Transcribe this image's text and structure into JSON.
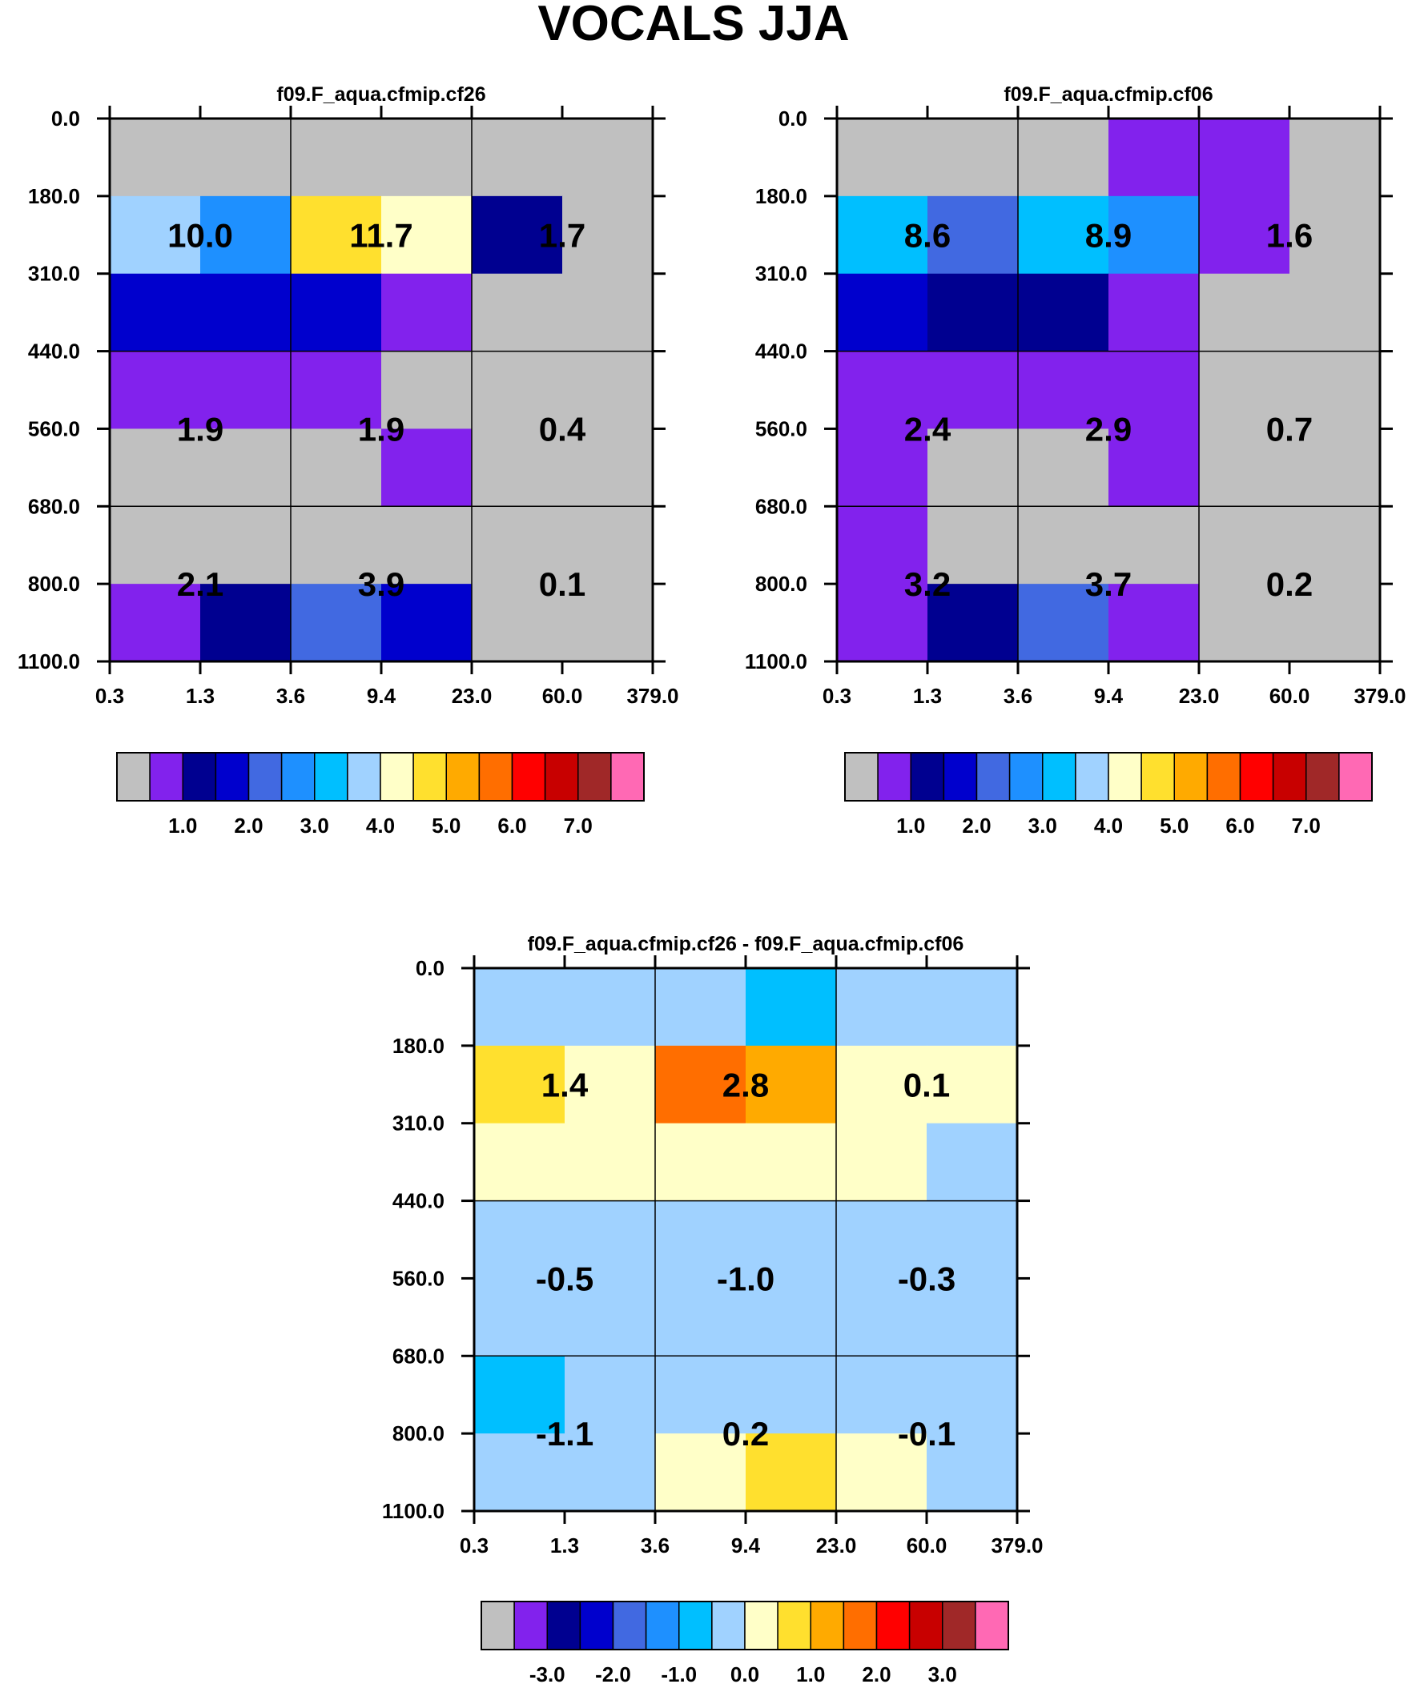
{
  "title": "VOCALS JJA",
  "colorbar": {
    "colors": [
      "#c0c0c0",
      "#8222ed",
      "#000090",
      "#0000cd",
      "#4169e1",
      "#1e90ff",
      "#00bfff",
      "#a0d2ff",
      "#ffffc8",
      "#ffe02e",
      "#ffaa00",
      "#ff6e00",
      "#ff0000",
      "#c80000",
      "#a02828",
      "#ff69b4"
    ]
  },
  "chart_data": [
    {
      "type": "heatmap",
      "title": "f09.F_aqua.cfmip.cf26",
      "x_tick_labels": [
        "0.3",
        "1.3",
        "3.6",
        "9.4",
        "23.0",
        "60.0",
        "379.0"
      ],
      "y_tick_labels": [
        "0.0",
        "180.0",
        "310.0",
        "440.0",
        "560.0",
        "680.0",
        "800.0",
        "1100.0"
      ],
      "cells": [
        [
          0,
          0,
          0,
          0,
          0,
          0
        ],
        [
          7,
          5,
          9,
          8,
          2,
          0
        ],
        [
          3,
          3,
          3,
          1,
          0,
          0
        ],
        [
          1,
          1,
          1,
          0,
          0,
          0
        ],
        [
          0,
          0,
          0,
          1,
          0,
          0
        ],
        [
          0,
          0,
          0,
          0,
          0,
          0
        ],
        [
          1,
          2,
          4,
          3,
          0,
          0
        ]
      ],
      "annotations": [
        [
          "10.0",
          "11.7",
          "1.7"
        ],
        [
          "1.9",
          "1.9",
          "0.4"
        ],
        [
          "2.1",
          "3.9",
          "0.1"
        ]
      ],
      "colorbar_tick_labels": [
        "1.0",
        "2.0",
        "3.0",
        "4.0",
        "5.0",
        "6.0",
        "7.0"
      ]
    },
    {
      "type": "heatmap",
      "title": "f09.F_aqua.cfmip.cf06",
      "x_tick_labels": [
        "0.3",
        "1.3",
        "3.6",
        "9.4",
        "23.0",
        "60.0",
        "379.0"
      ],
      "y_tick_labels": [
        "0.0",
        "180.0",
        "310.0",
        "440.0",
        "560.0",
        "680.0",
        "800.0",
        "1100.0"
      ],
      "cells": [
        [
          0,
          0,
          0,
          1,
          1,
          0
        ],
        [
          6,
          4,
          6,
          5,
          1,
          0
        ],
        [
          3,
          2,
          2,
          1,
          0,
          0
        ],
        [
          1,
          1,
          1,
          1,
          0,
          0
        ],
        [
          1,
          0,
          0,
          1,
          0,
          0
        ],
        [
          1,
          0,
          0,
          0,
          0,
          0
        ],
        [
          1,
          2,
          4,
          1,
          0,
          0
        ]
      ],
      "annotations": [
        [
          "8.6",
          "8.9",
          "1.6"
        ],
        [
          "2.4",
          "2.9",
          "0.7"
        ],
        [
          "3.2",
          "3.7",
          "0.2"
        ]
      ],
      "colorbar_tick_labels": [
        "1.0",
        "2.0",
        "3.0",
        "4.0",
        "5.0",
        "6.0",
        "7.0"
      ]
    },
    {
      "type": "heatmap",
      "title": "f09.F_aqua.cfmip.cf26 - f09.F_aqua.cfmip.cf06",
      "x_tick_labels": [
        "0.3",
        "1.3",
        "3.6",
        "9.4",
        "23.0",
        "60.0",
        "379.0"
      ],
      "y_tick_labels": [
        "0.0",
        "180.0",
        "310.0",
        "440.0",
        "560.0",
        "680.0",
        "800.0",
        "1100.0"
      ],
      "cells": [
        [
          7,
          7,
          7,
          6,
          7,
          7
        ],
        [
          9,
          8,
          11,
          10,
          8,
          8
        ],
        [
          8,
          8,
          8,
          8,
          8,
          7
        ],
        [
          7,
          7,
          7,
          7,
          7,
          7
        ],
        [
          7,
          7,
          7,
          7,
          7,
          7
        ],
        [
          6,
          7,
          7,
          7,
          7,
          7
        ],
        [
          7,
          7,
          8,
          9,
          8,
          7
        ]
      ],
      "annotations": [
        [
          "1.4",
          "2.8",
          "0.1"
        ],
        [
          "-0.5",
          "-1.0",
          "-0.3"
        ],
        [
          "-1.1",
          "0.2",
          "-0.1"
        ]
      ],
      "colorbar_tick_labels": [
        "-3.0",
        "-2.0",
        "-1.0",
        "0.0",
        "1.0",
        "2.0",
        "3.0"
      ]
    }
  ]
}
